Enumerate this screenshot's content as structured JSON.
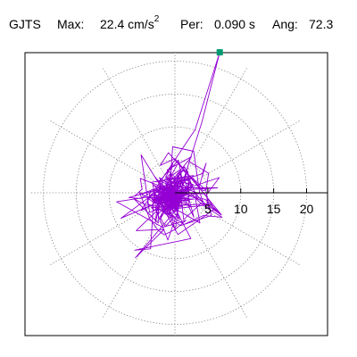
{
  "header": {
    "station": "GJTS",
    "max_label": "Max:",
    "max_value": "22.4 cm/s",
    "max_exp": "2",
    "per_label": "Per:",
    "per_value": "0.090 s",
    "ang_label": "Ang:",
    "ang_value": "72.3"
  },
  "chart_data": {
    "type": "scatter",
    "subtype": "polar-particle-motion",
    "title": "",
    "xlabel": "",
    "ylabel": "",
    "radial_ticks": [
      "5",
      "10",
      "15",
      "20"
    ],
    "radial_values": [
      5,
      10,
      15,
      20
    ],
    "radial_range": [
      0,
      24
    ],
    "angular_gridlines_deg": [
      0,
      30,
      60,
      90,
      120,
      150,
      180,
      210,
      240,
      270,
      300,
      330
    ],
    "grid": true,
    "max_amplitude": 22.4,
    "peak_angle_deg": 72.3,
    "trace_color": "#9400d3",
    "peak_marker_color": "#009970"
  }
}
